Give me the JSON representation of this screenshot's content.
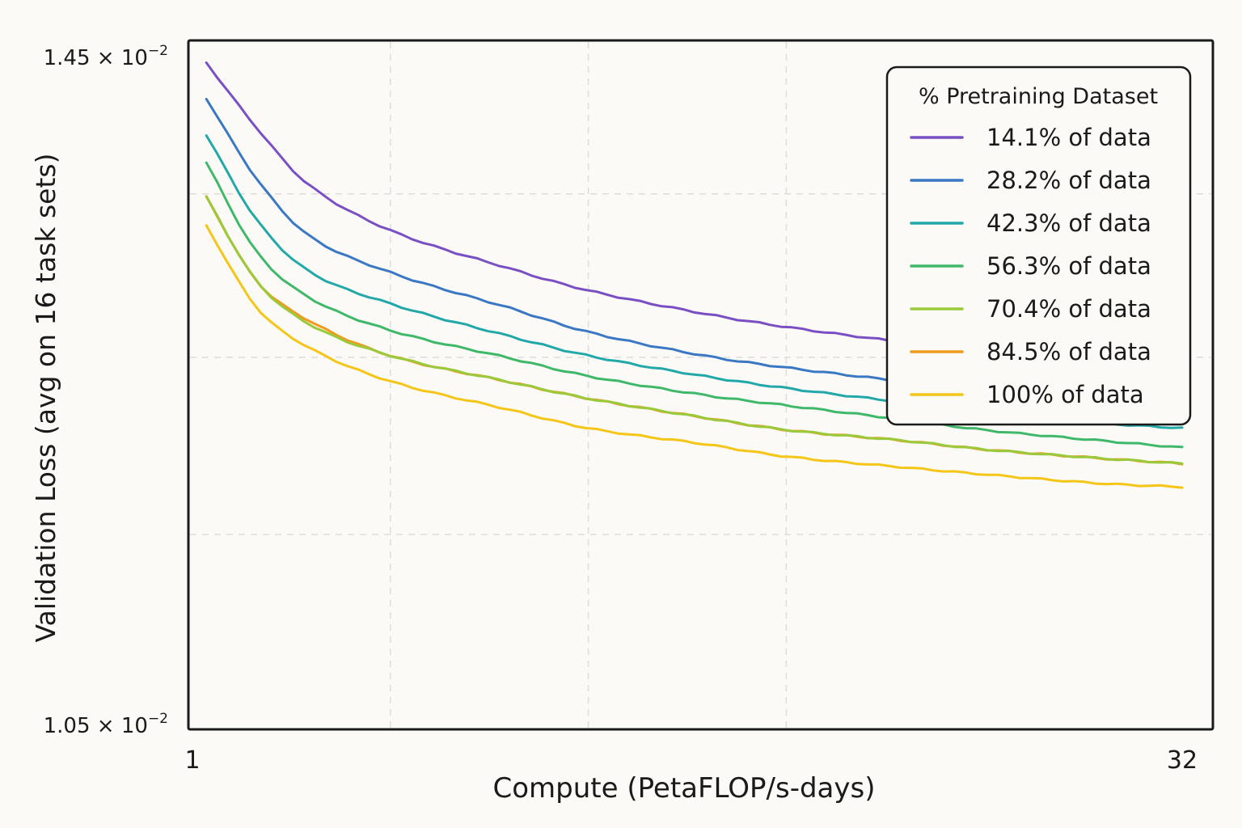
{
  "chart_data": {
    "type": "line",
    "xlabel": "Compute (PetaFLOP/s-days)",
    "ylabel": "Validation Loss (avg on 16 task sets)",
    "x_scale": "log",
    "y_scale": "log",
    "xlim": [
      1,
      32
    ],
    "ylim": [
      0.0105,
      0.0145
    ],
    "x_tick_labels": [
      "1",
      "32"
    ],
    "y_tick_labels": [
      {
        "mantissa": "1.45",
        "base": "10",
        "exponent": "−2"
      },
      {
        "mantissa": "1.05",
        "base": "10",
        "exponent": "−2"
      }
    ],
    "grid": true,
    "legend": {
      "title": "% Pretraining Dataset",
      "position": "top-right"
    },
    "x": [
      1.05,
      1.25,
      1.5,
      2,
      3,
      4,
      6,
      8,
      12,
      16,
      24,
      32
    ],
    "series": [
      {
        "name": "14.1% of data",
        "color": "#7b4fc4",
        "values": [
          0.01436,
          0.01393,
          0.01356,
          0.01327,
          0.01304,
          0.0129,
          0.01276,
          0.01268,
          0.01259,
          0.01253,
          0.01247,
          0.01243
        ]
      },
      {
        "name": "28.2% of data",
        "color": "#3b78c4",
        "values": [
          0.01412,
          0.0136,
          0.01324,
          0.01301,
          0.0128,
          0.01265,
          0.01251,
          0.01244,
          0.01236,
          0.01231,
          0.01226,
          0.01223
        ]
      },
      {
        "name": "42.3% of data",
        "color": "#22a8a8",
        "values": [
          0.01388,
          0.01334,
          0.01302,
          0.01282,
          0.01263,
          0.01251,
          0.01239,
          0.01232,
          0.01224,
          0.01219,
          0.01212,
          0.01209
        ]
      },
      {
        "name": "56.3% of data",
        "color": "#3fb86a",
        "values": [
          0.0137,
          0.01314,
          0.01286,
          0.01266,
          0.0125,
          0.01239,
          0.01228,
          0.01222,
          0.01214,
          0.01208,
          0.01202,
          0.01198
        ]
      },
      {
        "name": "70.4% of data",
        "color": "#9ac93c",
        "values": [
          0.01348,
          0.01296,
          0.0127,
          0.01251,
          0.01236,
          0.01226,
          0.01215,
          0.01208,
          0.01202,
          0.01197,
          0.01192,
          0.01189
        ]
      },
      {
        "name": "84.5% of data",
        "color": "#f09a1e",
        "values": [
          0.01348,
          0.01296,
          0.01272,
          0.01251,
          0.01236,
          0.01226,
          0.01215,
          0.01208,
          0.01202,
          0.01197,
          0.01192,
          0.01189
        ]
      },
      {
        "name": "100% of data",
        "color": "#f5c518",
        "values": [
          0.0133,
          0.0128,
          0.01256,
          0.01236,
          0.0122,
          0.01209,
          0.012,
          0.01193,
          0.01187,
          0.01183,
          0.01178,
          0.01176
        ]
      }
    ]
  }
}
